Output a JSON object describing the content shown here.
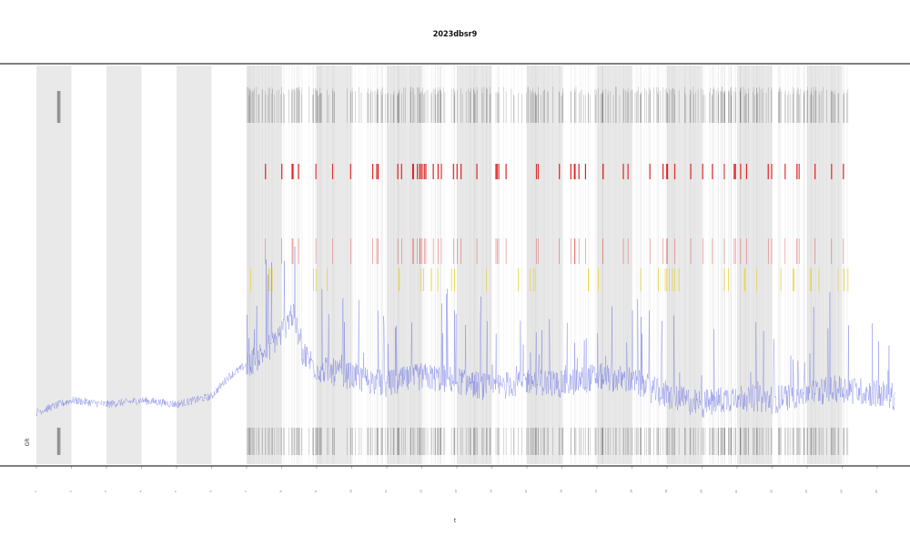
{
  "chart_data": {
    "type": "line",
    "title": "2023dbsr9",
    "xlabel": "t",
    "ylabel": "",
    "inner_label": "GR",
    "x_ticks": [
      "1",
      "2",
      "3",
      "4",
      "5",
      "6",
      "7",
      "8",
      "9",
      "10",
      "11",
      "12",
      "13",
      "14",
      "15",
      "16",
      "17",
      "18",
      "19",
      "20",
      "21",
      "22",
      "23",
      "24",
      "25"
    ],
    "y_ticks": [
      "",
      "",
      "",
      "",
      ""
    ],
    "grid": false,
    "shaded_intervals": [
      [
        1,
        2
      ],
      [
        3,
        4
      ],
      [
        5,
        6
      ],
      [
        7,
        8
      ],
      [
        9,
        10
      ],
      [
        11,
        12
      ],
      [
        13,
        14
      ],
      [
        15,
        16
      ],
      [
        17,
        18
      ],
      [
        19,
        20
      ],
      [
        21,
        22
      ],
      [
        23,
        24
      ]
    ],
    "series": [
      {
        "color": "#4a55e0",
        "x_range": [
          1,
          25.5
        ],
        "baseline_profile": [
          [
            1,
            0.13
          ],
          [
            2,
            0.16
          ],
          [
            3,
            0.15
          ],
          [
            4,
            0.16
          ],
          [
            5,
            0.15
          ],
          [
            6,
            0.17
          ],
          [
            6.5,
            0.22
          ],
          [
            7,
            0.25
          ],
          [
            7.5,
            0.28
          ],
          [
            8,
            0.33
          ],
          [
            8.3,
            0.38
          ],
          [
            8.6,
            0.28
          ],
          [
            9,
            0.24
          ],
          [
            10,
            0.22
          ],
          [
            11,
            0.2
          ],
          [
            12,
            0.22
          ],
          [
            13,
            0.21
          ],
          [
            14,
            0.19
          ],
          [
            15,
            0.21
          ],
          [
            16,
            0.2
          ],
          [
            17,
            0.22
          ],
          [
            18,
            0.21
          ],
          [
            19,
            0.17
          ],
          [
            20,
            0.15
          ],
          [
            21,
            0.17
          ],
          [
            22,
            0.16
          ],
          [
            23,
            0.18
          ],
          [
            24,
            0.19
          ],
          [
            25.5,
            0.17
          ]
        ]
      }
    ],
    "event_colors": {
      "high": "#dd2222",
      "mid": "#e6d640",
      "low": "#222222"
    }
  }
}
